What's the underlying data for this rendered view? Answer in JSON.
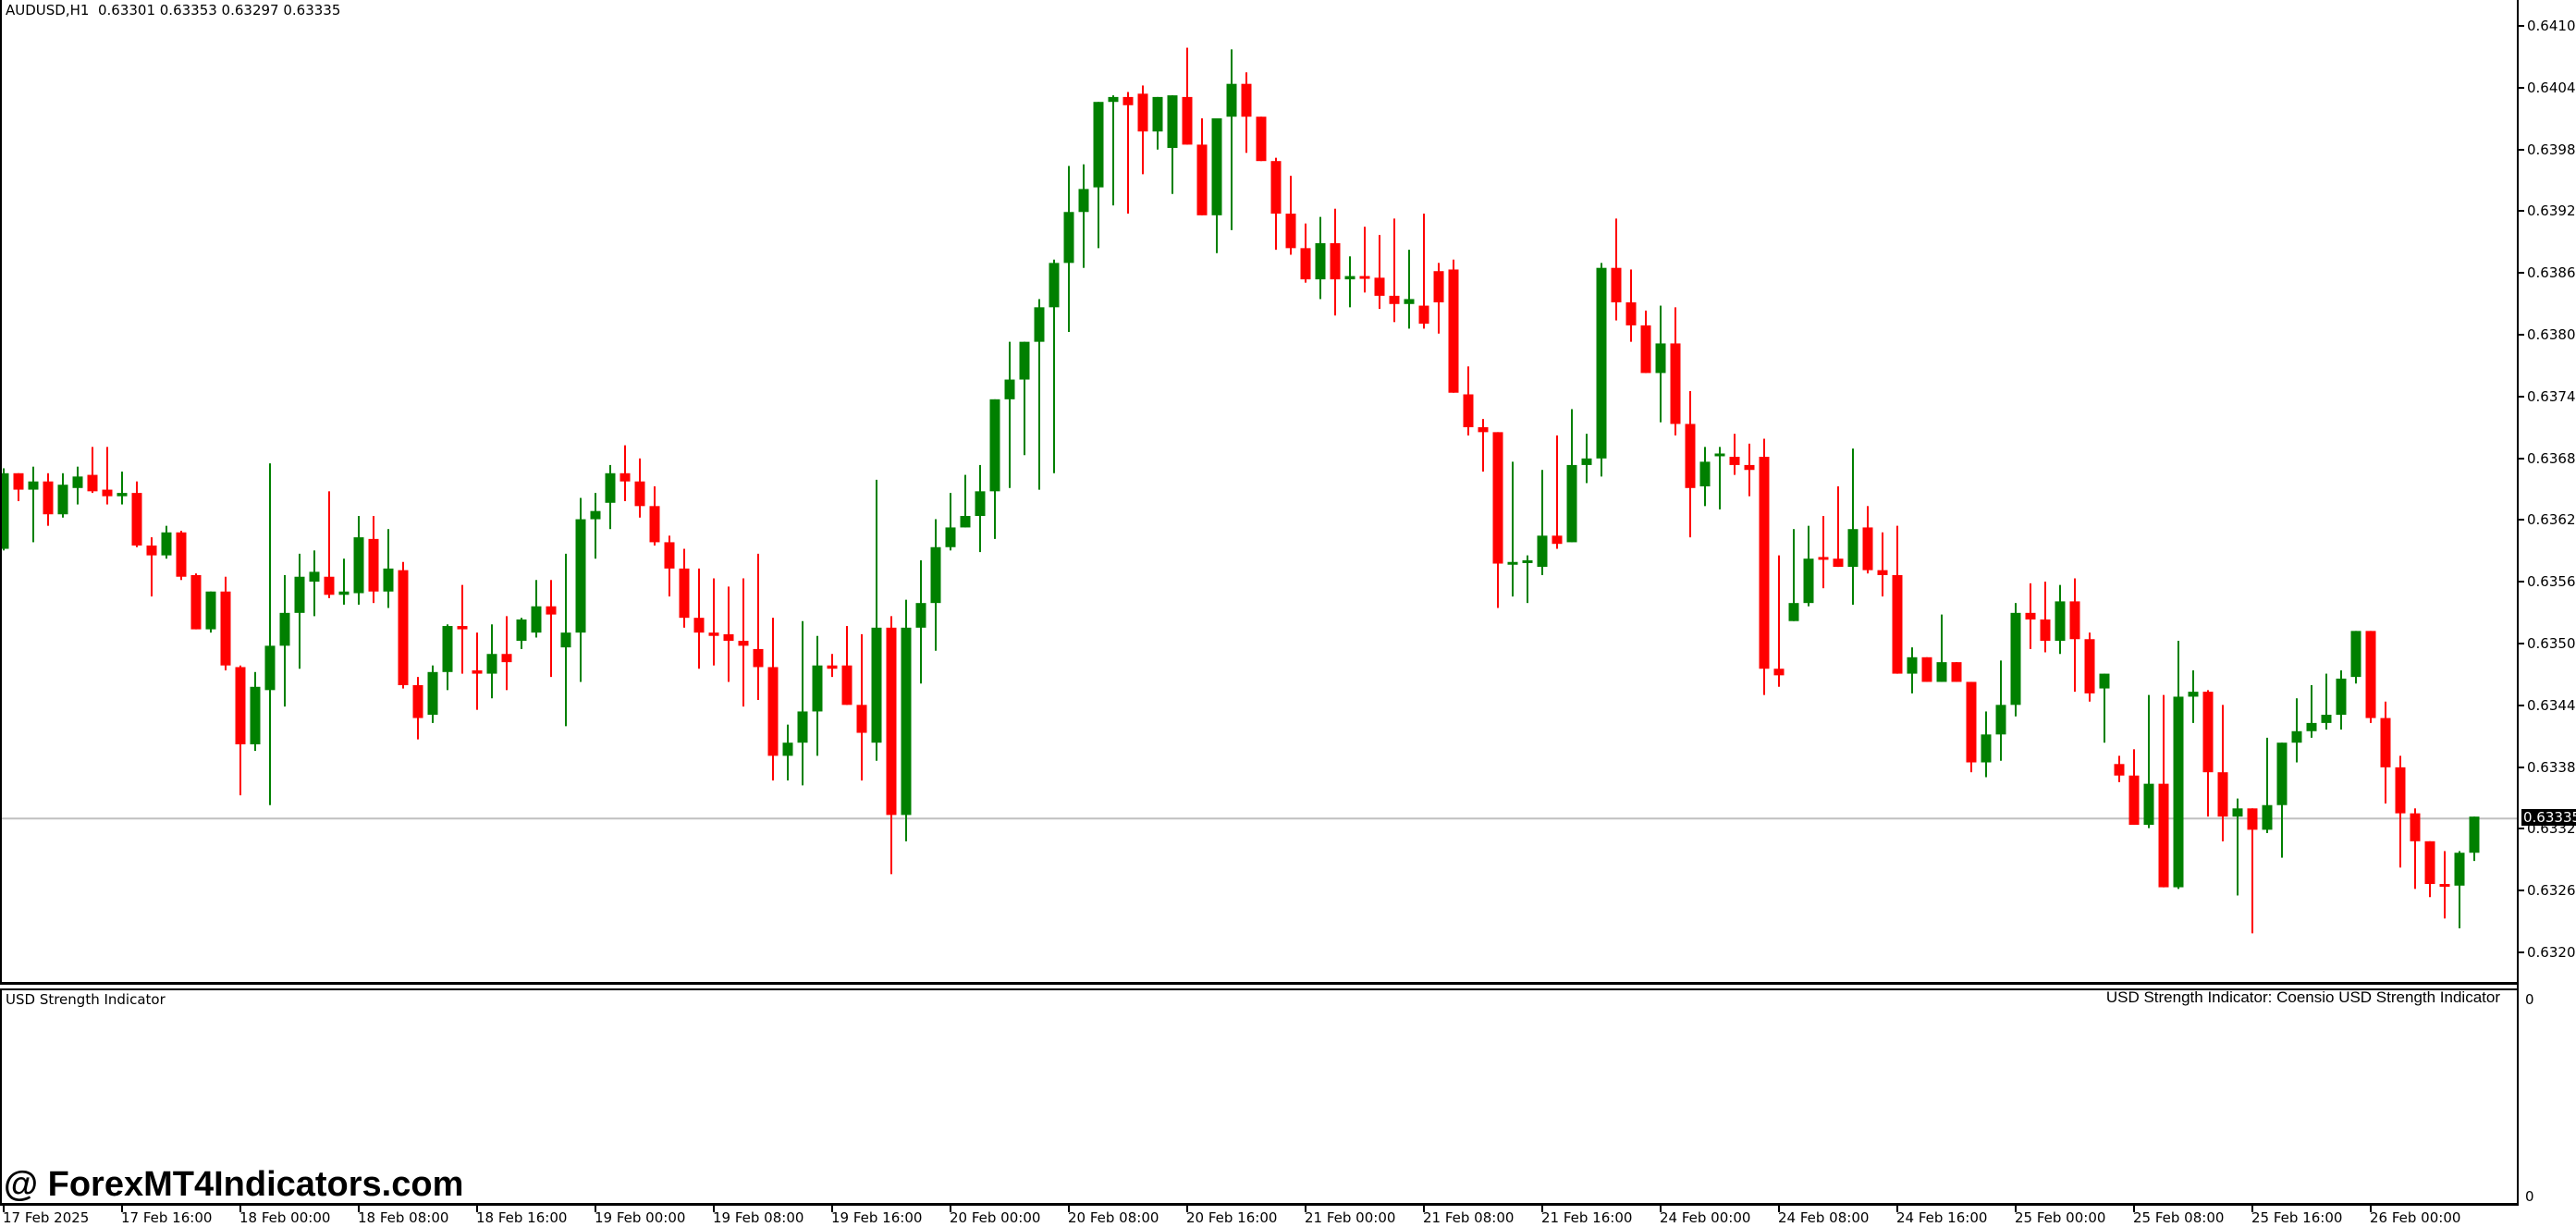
{
  "header": {
    "symbol": "AUDUSD,H1",
    "ohlc": "0.63301 0.63353 0.63297 0.63335",
    "title_text": "AUDUSD,H1  0.63301 0.63353 0.63297 0.63335"
  },
  "price_axis": {
    "ticks": [
      "0.64105",
      "0.64045",
      "0.63985",
      "0.63925",
      "0.63865",
      "0.63805",
      "0.63745",
      "0.63685",
      "0.63625",
      "0.63565",
      "0.63505",
      "0.63445",
      "0.63385",
      "0.63325",
      "0.63265",
      "0.63205"
    ],
    "current_price": "0.63335"
  },
  "time_axis": {
    "labels": [
      "17 Feb 2025",
      "17 Feb 16:00",
      "18 Feb 00:00",
      "18 Feb 08:00",
      "18 Feb 16:00",
      "19 Feb 00:00",
      "19 Feb 08:00",
      "19 Feb 16:00",
      "20 Feb 00:00",
      "20 Feb 08:00",
      "20 Feb 16:00",
      "21 Feb 00:00",
      "21 Feb 08:00",
      "21 Feb 16:00",
      "24 Feb 00:00",
      "24 Feb 08:00",
      "24 Feb 16:00",
      "25 Feb 00:00",
      "25 Feb 08:00",
      "25 Feb 16:00",
      "26 Feb 00:00"
    ]
  },
  "subwindow": {
    "title_left": "USD Strength Indicator",
    "title_right": "USD Strength Indicator: Coensio USD Strength Indicator",
    "axis_top": "0",
    "axis_bottom": "0"
  },
  "watermark": "@ ForexMT4Indicators.com",
  "colors": {
    "bull": "#008000",
    "bear": "#ff0000",
    "price_line": "#c0c0c0",
    "axis": "#000000"
  },
  "chart_data": {
    "type": "candlestick",
    "title": "AUDUSD,H1",
    "xlabel": "",
    "ylabel": "",
    "ylim": [
      0.63175,
      0.64135
    ],
    "grid": false,
    "current_price": 0.63335,
    "ohlc_fields": [
      "open",
      "high",
      "low",
      "close"
    ],
    "candles_overview_y": [
      [
        316,
        310,
        345,
        334
      ],
      [
        334,
        285,
        335,
        288
      ],
      [
        288,
        288,
        305,
        298
      ],
      [
        298,
        284,
        330,
        293
      ],
      [
        293,
        288,
        320,
        313
      ],
      [
        313,
        288,
        315,
        295
      ],
      [
        297,
        284,
        307,
        290
      ],
      [
        289,
        272,
        300,
        299
      ],
      [
        298,
        272,
        307,
        302
      ],
      [
        302,
        287,
        307,
        300
      ],
      [
        300,
        293,
        333,
        332
      ],
      [
        332,
        327,
        363,
        338
      ],
      [
        338,
        320,
        340,
        324
      ],
      [
        324,
        323,
        353,
        351
      ],
      [
        350,
        349,
        382,
        383
      ],
      [
        383,
        367,
        385,
        360
      ],
      [
        360,
        351,
        408,
        405
      ],
      [
        406,
        405,
        484,
        453
      ],
      [
        453,
        409,
        457,
        418
      ],
      [
        420,
        282,
        490,
        393
      ],
      [
        393,
        350,
        430,
        373
      ],
      [
        373,
        337,
        407,
        351
      ],
      [
        354,
        335,
        375,
        348
      ],
      [
        351,
        299,
        364,
        362
      ],
      [
        362,
        340,
        368,
        360
      ],
      [
        361,
        314,
        368,
        327
      ],
      [
        328,
        314,
        367,
        360
      ],
      [
        360,
        322,
        370,
        346
      ],
      [
        347,
        342,
        419,
        417
      ],
      [
        417,
        412,
        450,
        437
      ],
      [
        435,
        405,
        440,
        409
      ],
      [
        409,
        380,
        420,
        381
      ],
      [
        381,
        356,
        410,
        383
      ],
      [
        408,
        385,
        432,
        410
      ],
      [
        410,
        380,
        425,
        398
      ],
      [
        398,
        375,
        420,
        403
      ],
      [
        390,
        376,
        395,
        377
      ],
      [
        385,
        353,
        388,
        369
      ],
      [
        369,
        353,
        412,
        374
      ],
      [
        394,
        337,
        442,
        385
      ],
      [
        385,
        303,
        415,
        316
      ],
      [
        316,
        300,
        340,
        311
      ],
      [
        306,
        283,
        322,
        288
      ],
      [
        288,
        271,
        305,
        293
      ],
      [
        293,
        279,
        315,
        308
      ],
      [
        308,
        296,
        332,
        330
      ],
      [
        330,
        326,
        363,
        346
      ],
      [
        346,
        334,
        382,
        376
      ],
      [
        376,
        346,
        407,
        385
      ],
      [
        385,
        352,
        405,
        387
      ],
      [
        386,
        357,
        415,
        390
      ],
      [
        390,
        352,
        430,
        393
      ],
      [
        395,
        337,
        426,
        406
      ],
      [
        406,
        376,
        475,
        460
      ],
      [
        460,
        441,
        475,
        452
      ],
      [
        452,
        378,
        478,
        433
      ],
      [
        433,
        387,
        460,
        405
      ],
      [
        405,
        398,
        412,
        407
      ],
      [
        405,
        381,
        428,
        429
      ],
      [
        429,
        386,
        475,
        446
      ],
      [
        452,
        292,
        463,
        382
      ],
      [
        382,
        375,
        532,
        496
      ],
      [
        496,
        365,
        512,
        382
      ],
      [
        382,
        341,
        416,
        367
      ],
      [
        367,
        316,
        396,
        333
      ],
      [
        333,
        300,
        335,
        321
      ],
      [
        321,
        289,
        318,
        314
      ],
      [
        314,
        283,
        336,
        299
      ],
      [
        299,
        268,
        328,
        243
      ],
      [
        243,
        208,
        297,
        231
      ],
      [
        231,
        213,
        277,
        208
      ],
      [
        208,
        182,
        298,
        187
      ],
      [
        187,
        158,
        288,
        160
      ],
      [
        160,
        101,
        202,
        129
      ],
      [
        129,
        100,
        163,
        115
      ],
      [
        114,
        64,
        151,
        62
      ],
      [
        62,
        58,
        125,
        59
      ],
      [
        59,
        56,
        130,
        64
      ],
      [
        57,
        52,
        106,
        80
      ],
      [
        80,
        77,
        91,
        59
      ],
      [
        90,
        63,
        118,
        58
      ],
      [
        59,
        29,
        82,
        88
      ],
      [
        88,
        72,
        106,
        131
      ],
      [
        131,
        106,
        154,
        72
      ],
      [
        71,
        30,
        140,
        51
      ],
      [
        51,
        44,
        93,
        71
      ],
      [
        71,
        80,
        94,
        98
      ],
      [
        98,
        96,
        152,
        130
      ],
      [
        130,
        107,
        155,
        151
      ],
      [
        151,
        136,
        172,
        170
      ],
      [
        170,
        132,
        182,
        148
      ],
      [
        148,
        127,
        192,
        170
      ],
      [
        170,
        156,
        187,
        168
      ],
      [
        168,
        138,
        178,
        169
      ],
      [
        169,
        143,
        188,
        180
      ],
      [
        180,
        133,
        196,
        185
      ],
      [
        185,
        152,
        200,
        182
      ],
      [
        186,
        130,
        200,
        197
      ],
      [
        165,
        160,
        203,
        184
      ],
      [
        164,
        158,
        238,
        239
      ],
      [
        240,
        223,
        265,
        260
      ],
      [
        260,
        255,
        287,
        263
      ],
      [
        263,
        285,
        370,
        343
      ],
      [
        343,
        281,
        363,
        342
      ],
      [
        342,
        338,
        367,
        341
      ],
      [
        345,
        286,
        350,
        326
      ],
      [
        326,
        265,
        334,
        331
      ],
      [
        330,
        249,
        300,
        283
      ],
      [
        283,
        264,
        294,
        279
      ],
      [
        279,
        160,
        290,
        163
      ],
      [
        163,
        133,
        195,
        184
      ],
      [
        184,
        164,
        208,
        198
      ],
      [
        198,
        189,
        227,
        227
      ],
      [
        227,
        186,
        257,
        209
      ],
      [
        209,
        187,
        265,
        258
      ],
      [
        258,
        238,
        327,
        297
      ],
      [
        296,
        272,
        308,
        281
      ],
      [
        276,
        272,
        310,
        276
      ],
      [
        278,
        264,
        289,
        283
      ],
      [
        283,
        270,
        302,
        286
      ],
      [
        278,
        267,
        423,
        407
      ],
      [
        407,
        338,
        418,
        411
      ],
      [
        378,
        322,
        355,
        367
      ],
      [
        367,
        320,
        369,
        340
      ],
      [
        339,
        314,
        358,
        340
      ],
      [
        340,
        296,
        338,
        345
      ],
      [
        345,
        273,
        368,
        322
      ],
      [
        321,
        308,
        349,
        347
      ],
      [
        347,
        324,
        363,
        350
      ],
      [
        350,
        320,
        408,
        410
      ],
      [
        410,
        394,
        422,
        400
      ],
      [
        400,
        410,
        414,
        415
      ],
      [
        415,
        374,
        415,
        403
      ],
      [
        403,
        408,
        412,
        415
      ],
      [
        415,
        450,
        470,
        464
      ],
      [
        464,
        433,
        473,
        447
      ],
      [
        447,
        402,
        463,
        429
      ],
      [
        429,
        367,
        436,
        373
      ],
      [
        373,
        355,
        395,
        377
      ],
      [
        377,
        354,
        397,
        390
      ],
      [
        390,
        356,
        398,
        366
      ],
      [
        366,
        352,
        421,
        389
      ],
      [
        389,
        385,
        427,
        422
      ],
      [
        419,
        430,
        452,
        410
      ],
      [
        465,
        460,
        476,
        472
      ],
      [
        472,
        456,
        478,
        502
      ],
      [
        502,
        423,
        504,
        477
      ],
      [
        477,
        423,
        516,
        540
      ],
      [
        540,
        390,
        541,
        424
      ],
      [
        424,
        408,
        440,
        421
      ],
      [
        421,
        420,
        497,
        470
      ],
      [
        470,
        429,
        512,
        497
      ],
      [
        497,
        486,
        545,
        492
      ],
      [
        492,
        492,
        568,
        505
      ],
      [
        505,
        449,
        507,
        490
      ],
      [
        490,
        457,
        522,
        452
      ],
      [
        452,
        425,
        464,
        445
      ],
      [
        445,
        417,
        449,
        440
      ],
      [
        440,
        410,
        444,
        435
      ],
      [
        435,
        408,
        444,
        413
      ],
      [
        412,
        385,
        416,
        384
      ],
      [
        384,
        395,
        440,
        437
      ],
      [
        437,
        427,
        489,
        467
      ],
      [
        467,
        460,
        528,
        495
      ],
      [
        495,
        492,
        541,
        512
      ],
      [
        512,
        525,
        546,
        538
      ],
      [
        538,
        518,
        559,
        539
      ],
      [
        539,
        518,
        565,
        519
      ],
      [
        519,
        509,
        524,
        497
      ]
    ],
    "conversion": "price = 0.641301 - overview_y * 0.00001596"
  }
}
